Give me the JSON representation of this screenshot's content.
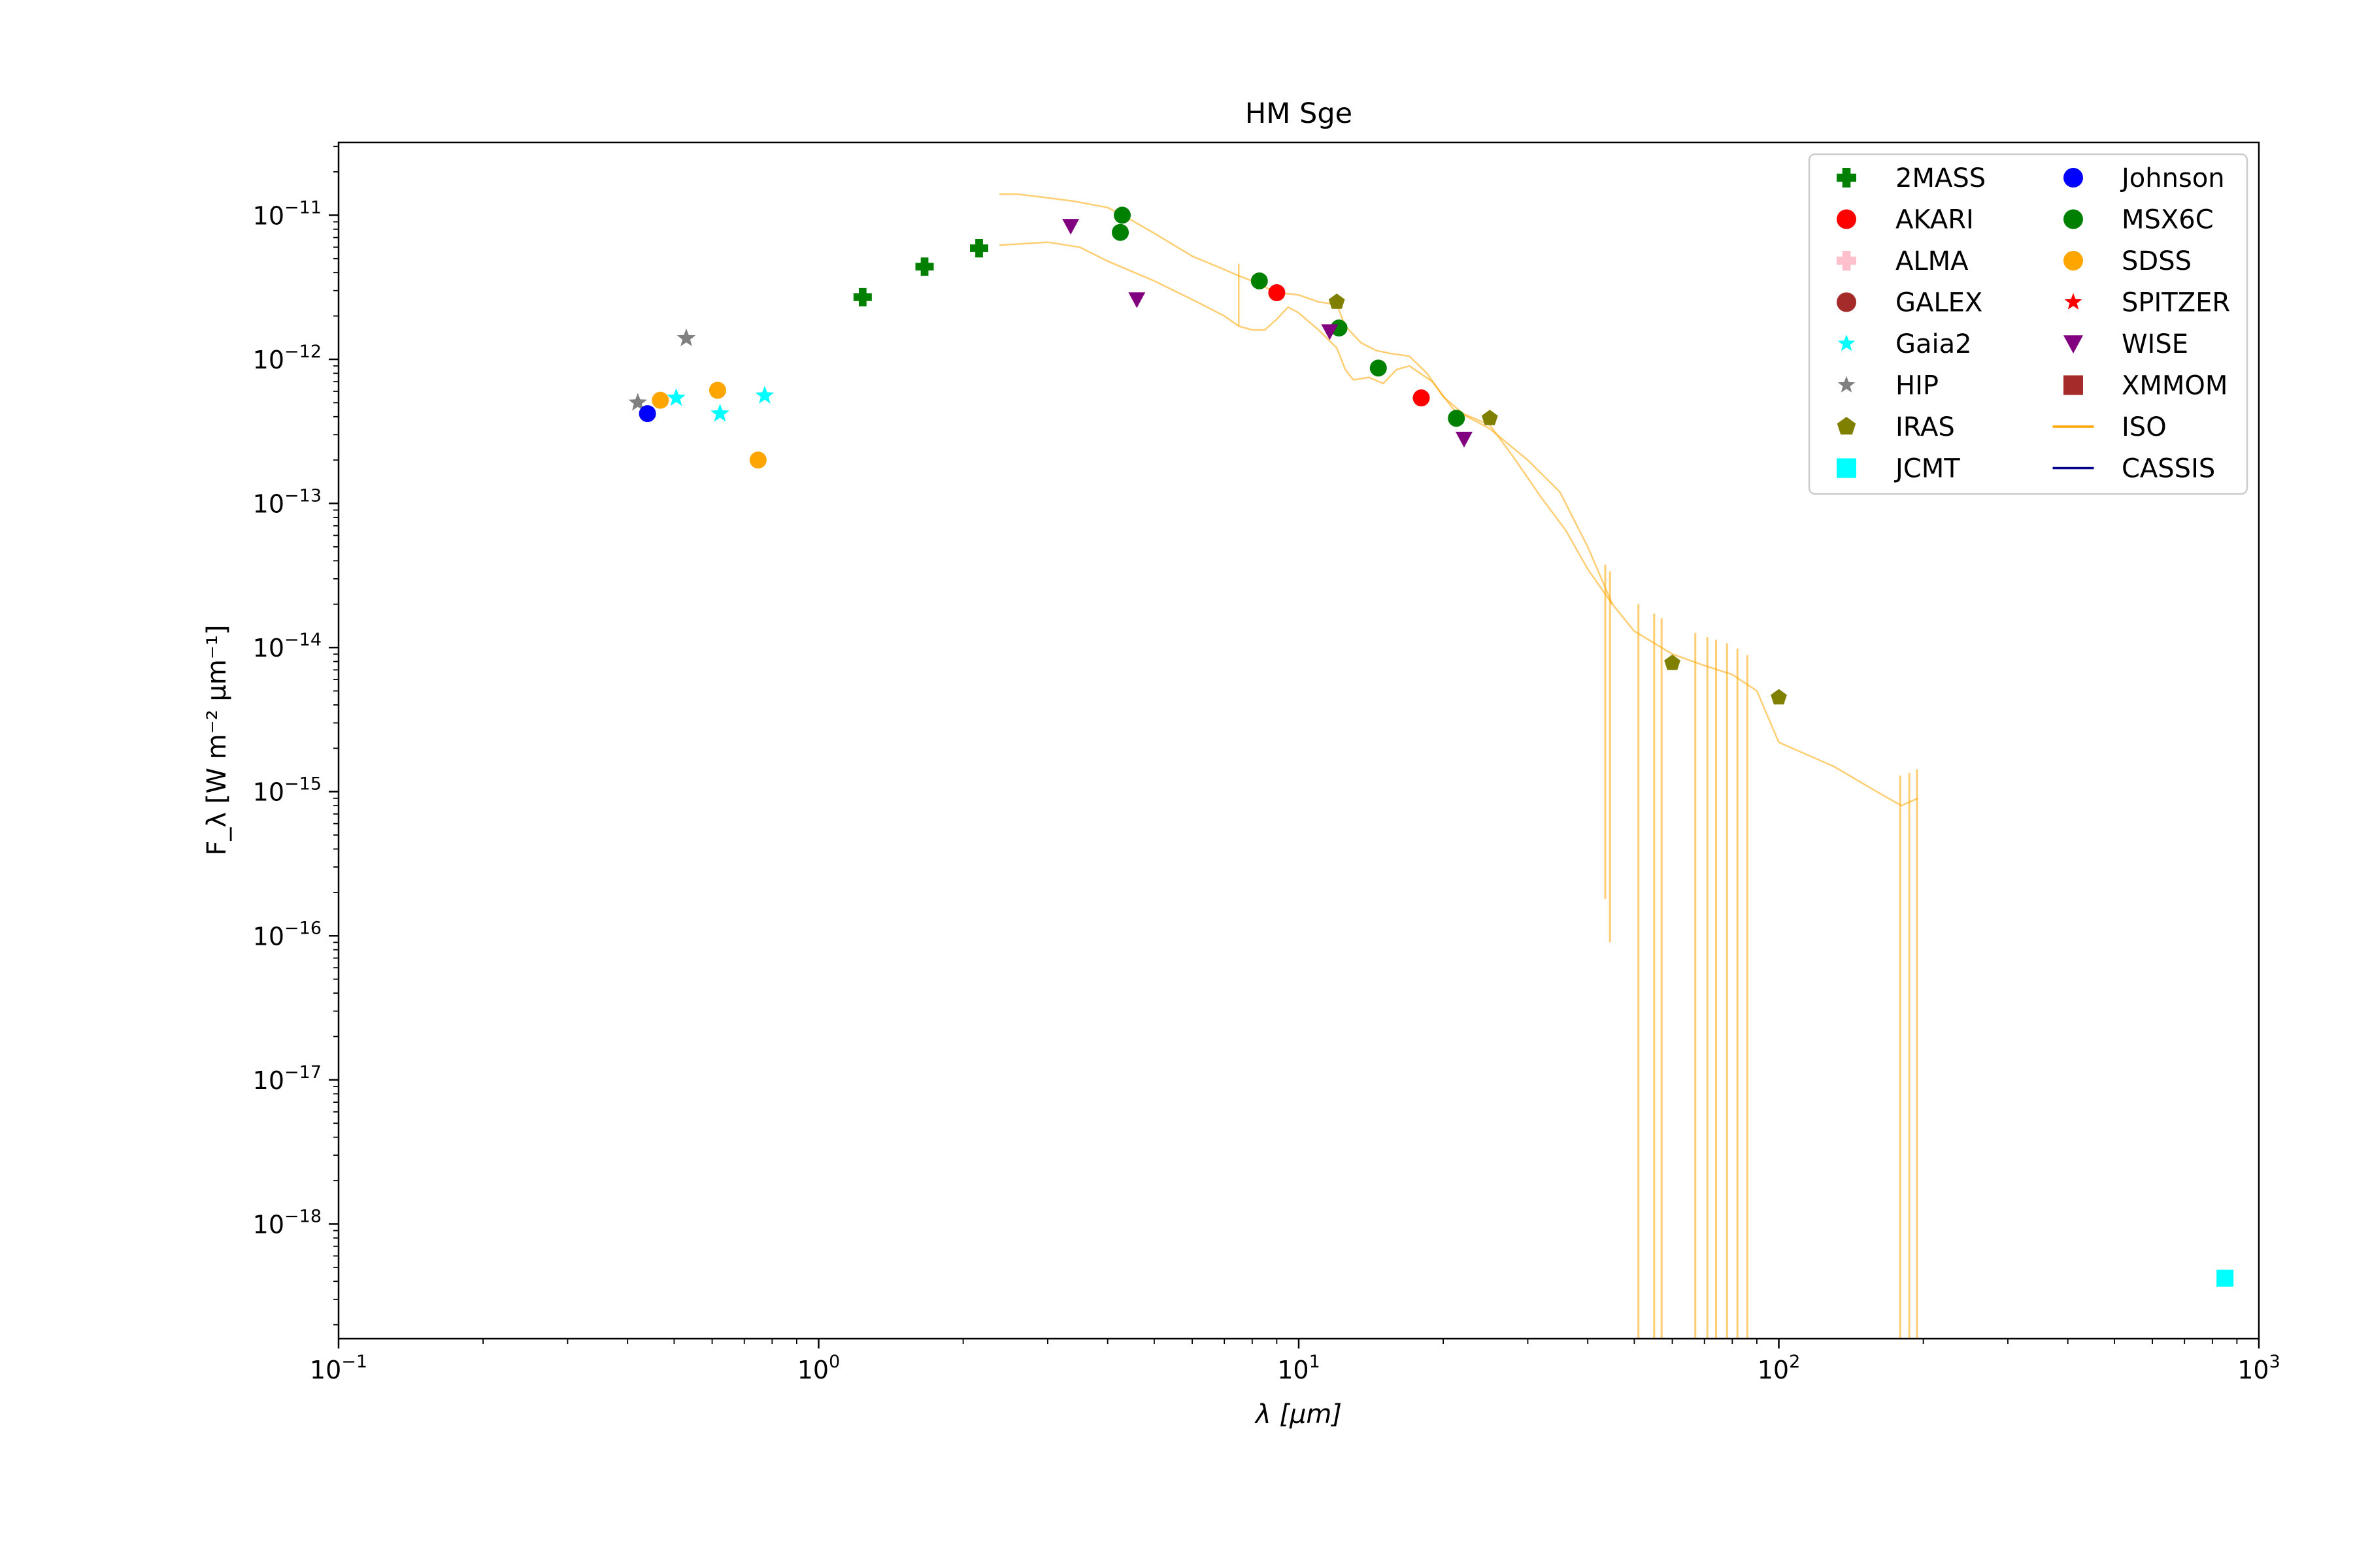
{
  "chart_data": {
    "type": "scatter",
    "title": "HM Sge",
    "xlabel": "λ [μm]",
    "ylabel": "F_λ [W m⁻² μm⁻¹]",
    "xscale": "log",
    "yscale": "log",
    "xlim": [
      0.1,
      1000
    ],
    "ylim": [
      1.6e-19,
      3.2e-11
    ],
    "grid": false,
    "legend_position": "top-right",
    "x_tick_labels": [
      {
        "base": "10",
        "exp": "−1",
        "value": 0.1
      },
      {
        "base": "10",
        "exp": "0",
        "value": 1
      },
      {
        "base": "10",
        "exp": "1",
        "value": 10
      },
      {
        "base": "10",
        "exp": "2",
        "value": 100
      },
      {
        "base": "10",
        "exp": "3",
        "value": 1000
      }
    ],
    "y_tick_labels": [
      {
        "base": "10",
        "exp": "−11",
        "value": 1e-11
      },
      {
        "base": "10",
        "exp": "−12",
        "value": 1e-12
      },
      {
        "base": "10",
        "exp": "−13",
        "value": 1e-13
      },
      {
        "base": "10",
        "exp": "−14",
        "value": 1e-14
      },
      {
        "base": "10",
        "exp": "−15",
        "value": 1e-15
      },
      {
        "base": "10",
        "exp": "−16",
        "value": 1e-16
      },
      {
        "base": "10",
        "exp": "−17",
        "value": 1e-17
      },
      {
        "base": "10",
        "exp": "−18",
        "value": 1e-18
      }
    ],
    "series": [
      {
        "name": "2MASS",
        "marker": "plus",
        "color": "#008000",
        "points": [
          [
            1.235,
            2.7e-12
          ],
          [
            1.662,
            4.4e-12
          ],
          [
            2.159,
            5.9e-12
          ]
        ]
      },
      {
        "name": "AKARI",
        "marker": "circle",
        "color": "#ff0000",
        "points": [
          [
            9.0,
            2.9e-12
          ],
          [
            18.0,
            5.4e-13
          ]
        ]
      },
      {
        "name": "ALMA",
        "marker": "plus",
        "color": "#ffc0cb",
        "points": []
      },
      {
        "name": "GALEX",
        "marker": "circle",
        "color": "#a52a2a",
        "points": []
      },
      {
        "name": "Gaia2",
        "marker": "star",
        "color": "#00ffff",
        "points": [
          [
            0.505,
            5.4e-13
          ],
          [
            0.623,
            4.2e-13
          ],
          [
            0.772,
            5.6e-13
          ]
        ]
      },
      {
        "name": "HIP",
        "marker": "star",
        "color": "#808080",
        "points": [
          [
            0.42,
            5e-13
          ],
          [
            0.53,
            1.4e-12
          ]
        ]
      },
      {
        "name": "IRAS",
        "marker": "pentagon",
        "color": "#808000",
        "points": [
          [
            12.0,
            2.5e-12
          ],
          [
            25.0,
            3.9e-13
          ],
          [
            60.0,
            7.8e-15
          ],
          [
            100.0,
            4.5e-15
          ]
        ]
      },
      {
        "name": "JCMT",
        "marker": "square",
        "color": "#00ffff",
        "points": [
          [
            850.0,
            4.2e-19
          ]
        ]
      },
      {
        "name": "Johnson",
        "marker": "circle",
        "color": "#0000ff",
        "points": [
          [
            0.44,
            4.2e-13
          ]
        ]
      },
      {
        "name": "MSX6C",
        "marker": "circle",
        "color": "#008000",
        "points": [
          [
            4.29,
            1e-11
          ],
          [
            4.25,
            7.6e-12
          ],
          [
            8.28,
            3.5e-12
          ],
          [
            12.13,
            1.65e-12
          ],
          [
            14.65,
            8.7e-13
          ],
          [
            21.3,
            3.9e-13
          ]
        ]
      },
      {
        "name": "SDSS",
        "marker": "circle",
        "color": "#ffa500",
        "points": [
          [
            0.468,
            5.2e-13
          ],
          [
            0.616,
            6.1e-13
          ],
          [
            0.748,
            2e-13
          ]
        ]
      },
      {
        "name": "SPITZER",
        "marker": "star",
        "color": "#ff0000",
        "points": []
      },
      {
        "name": "WISE",
        "marker": "triangle-down",
        "color": "#800080",
        "points": [
          [
            3.35,
            8.4e-12
          ],
          [
            4.6,
            2.6e-12
          ],
          [
            11.6,
            1.56e-12
          ],
          [
            22.1,
            2.8e-13
          ]
        ]
      },
      {
        "name": "XMMOM",
        "marker": "square",
        "color": "#a52a2a",
        "points": []
      },
      {
        "name": "ISO",
        "marker": "line",
        "color": "#ffa500",
        "upper_branch": [
          [
            2.38,
            1.4e-11
          ],
          [
            2.6,
            1.4e-11
          ],
          [
            3.0,
            1.32e-11
          ],
          [
            3.4,
            1.25e-11
          ],
          [
            4.0,
            1.13e-11
          ],
          [
            4.3,
            1e-11
          ],
          [
            5.0,
            7.5e-12
          ],
          [
            6.0,
            5.2e-12
          ],
          [
            7.0,
            4.2e-12
          ],
          [
            7.5,
            3.8e-12
          ],
          [
            8.0,
            3.5e-12
          ],
          [
            9.0,
            2.9e-12
          ],
          [
            10.0,
            2.8e-12
          ],
          [
            11.0,
            2.5e-12
          ],
          [
            12.0,
            2.4e-12
          ],
          [
            12.5,
            1.7e-12
          ],
          [
            13.5,
            1.3e-12
          ],
          [
            14.5,
            1.15e-12
          ],
          [
            15.5,
            1.1e-12
          ],
          [
            17.0,
            1.05e-12
          ],
          [
            18.5,
            8e-13
          ],
          [
            20.0,
            5.5e-13
          ],
          [
            22.0,
            4.2e-13
          ],
          [
            25.0,
            3.5e-13
          ],
          [
            28.0,
            2.1e-13
          ],
          [
            32.0,
            1.1e-13
          ],
          [
            36.0,
            6.5e-14
          ],
          [
            40.0,
            3.5e-14
          ],
          [
            45.0,
            2e-14
          ],
          [
            50.0,
            1.3e-14
          ],
          [
            60.0,
            9e-15
          ],
          [
            70.0,
            7.5e-15
          ],
          [
            80.0,
            6.5e-15
          ],
          [
            90.0,
            5e-15
          ],
          [
            100.0,
            2.2e-15
          ],
          [
            130.0,
            1.5e-15
          ],
          [
            160.0,
            1e-15
          ],
          [
            180.0,
            8e-16
          ],
          [
            195.0,
            9e-16
          ]
        ],
        "lower_branch": [
          [
            2.38,
            6.2e-12
          ],
          [
            3.0,
            6.5e-12
          ],
          [
            3.5,
            6e-12
          ],
          [
            4.0,
            4.8e-12
          ],
          [
            5.0,
            3.5e-12
          ],
          [
            6.0,
            2.6e-12
          ],
          [
            7.0,
            2e-12
          ],
          [
            7.5,
            1.7e-12
          ],
          [
            8.0,
            1.6e-12
          ],
          [
            8.5,
            1.6e-12
          ],
          [
            9.0,
            1.9e-12
          ],
          [
            9.5,
            2.3e-12
          ],
          [
            10.0,
            2.1e-12
          ],
          [
            11.0,
            1.6e-12
          ],
          [
            12.0,
            1.2e-12
          ],
          [
            12.5,
            8.5e-13
          ],
          [
            13.0,
            7.2e-13
          ],
          [
            14.0,
            7.5e-13
          ],
          [
            15.0,
            6.8e-13
          ],
          [
            16.0,
            8.5e-13
          ],
          [
            17.0,
            9e-13
          ],
          [
            19.0,
            7e-13
          ],
          [
            21.0,
            4.5e-13
          ],
          [
            25.0,
            3.3e-13
          ],
          [
            30.0,
            2e-13
          ],
          [
            35.0,
            1.2e-13
          ],
          [
            40.0,
            5e-14
          ],
          [
            45.0,
            2e-14
          ]
        ],
        "dips": [
          [
            43.5,
            1.8e-16
          ],
          [
            44.5,
            9e-17
          ],
          [
            51.0,
            1.6e-19
          ],
          [
            55.0,
            1.6e-19
          ],
          [
            57.0,
            1.6e-19
          ],
          [
            67.0,
            1.6e-19
          ],
          [
            71.0,
            1.6e-19
          ],
          [
            74.0,
            1.6e-19
          ],
          [
            78.0,
            1.6e-19
          ],
          [
            82.0,
            1.6e-19
          ],
          [
            86.0,
            1.6e-19
          ],
          [
            179.0,
            1.6e-19
          ],
          [
            187.0,
            1.6e-19
          ],
          [
            194.0,
            1.6e-19
          ]
        ]
      },
      {
        "name": "CASSIS",
        "marker": "line",
        "color": "#00008b",
        "points": []
      }
    ]
  }
}
